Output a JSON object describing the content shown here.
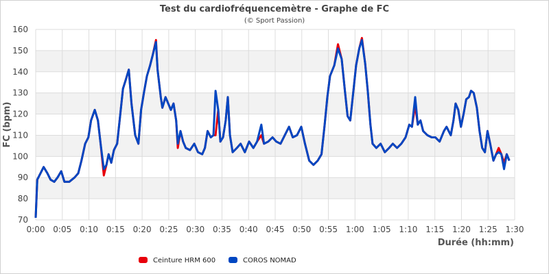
{
  "chart_data": {
    "type": "line",
    "title": "Test du cardiofréquencemètre - Graphe de FC",
    "subtitle": "(© Sport Passion)",
    "xlabel": "Durée (hh:mm)",
    "ylabel": "FC (bpm)",
    "ylim": [
      70,
      160
    ],
    "yticks": [
      "70",
      "80",
      "90",
      "100",
      "110",
      "120",
      "130",
      "140",
      "150",
      "160"
    ],
    "xlim": [
      "0:00",
      "1:30"
    ],
    "xticks": [
      "0:00",
      "0:05",
      "0:10",
      "0:15",
      "0:20",
      "0:25",
      "0:30",
      "0:35",
      "0:40",
      "0:45",
      "0:50",
      "0:55",
      "1:00",
      "1:05",
      "1:10",
      "1:15",
      "1:20",
      "1:25",
      "1:30"
    ],
    "grid": true,
    "legend_position": "bottom-left",
    "x": [
      "0:00:00",
      "0:00:18",
      "0:00:54",
      "0:01:30",
      "0:02:12",
      "0:02:48",
      "0:03:30",
      "0:04:06",
      "0:04:48",
      "0:05:24",
      "0:06:18",
      "0:07:18",
      "0:08:00",
      "0:08:36",
      "0:09:18",
      "0:09:54",
      "0:10:24",
      "0:11:06",
      "0:11:42",
      "0:12:12",
      "0:12:48",
      "0:13:18",
      "0:13:42",
      "0:14:12",
      "0:14:42",
      "0:15:18",
      "0:15:54",
      "0:16:24",
      "0:16:54",
      "0:17:30",
      "0:18:00",
      "0:18:42",
      "0:19:18",
      "0:19:48",
      "0:20:24",
      "0:20:54",
      "0:21:30",
      "0:22:00",
      "0:22:36",
      "0:22:54",
      "0:23:30",
      "0:23:48",
      "0:24:24",
      "0:24:54",
      "0:25:24",
      "0:25:54",
      "0:26:24",
      "0:26:42",
      "0:27:12",
      "0:27:42",
      "0:28:12",
      "0:29:00",
      "0:29:48",
      "0:30:30",
      "0:31:18",
      "0:31:48",
      "0:32:18",
      "0:32:54",
      "0:33:24",
      "0:33:48",
      "0:34:18",
      "0:34:42",
      "0:35:12",
      "0:35:42",
      "0:36:06",
      "0:36:30",
      "0:37:00",
      "0:37:48",
      "0:38:30",
      "0:39:18",
      "0:40:06",
      "0:40:54",
      "0:41:36",
      "0:42:24",
      "0:42:54",
      "0:43:42",
      "0:44:30",
      "0:45:12",
      "0:46:00",
      "0:46:48",
      "0:47:36",
      "0:48:18",
      "0:49:06",
      "0:49:54",
      "0:50:36",
      "0:51:24",
      "0:52:12",
      "0:53:00",
      "0:53:42",
      "0:54:18",
      "0:54:48",
      "0:55:18",
      "0:56:06",
      "0:56:48",
      "0:57:30",
      "0:58:06",
      "0:58:36",
      "0:59:06",
      "0:59:42",
      "1:00:12",
      "1:00:48",
      "1:01:18",
      "1:01:54",
      "1:02:24",
      "1:02:54",
      "1:03:18",
      "1:04:00",
      "1:04:48",
      "1:05:36",
      "1:06:24",
      "1:07:06",
      "1:07:54",
      "1:08:42",
      "1:09:30",
      "1:10:12",
      "1:10:42",
      "1:11:18",
      "1:11:48",
      "1:12:18",
      "1:12:48",
      "1:13:36",
      "1:14:24",
      "1:15:06",
      "1:15:54",
      "1:16:42",
      "1:17:12",
      "1:18:00",
      "1:18:30",
      "1:18:54",
      "1:19:24",
      "1:19:54",
      "1:20:24",
      "1:20:54",
      "1:21:24",
      "1:21:48",
      "1:22:18",
      "1:22:54",
      "1:23:24",
      "1:23:54",
      "1:24:24",
      "1:24:54",
      "1:25:24",
      "1:26:00",
      "1:26:30",
      "1:27:00",
      "1:27:30",
      "1:28:00",
      "1:28:30",
      "1:29:00"
    ],
    "series": [
      {
        "name": "Ceinture HRM 600",
        "color": "#e8000b",
        "values": [
          71,
          89,
          92,
          95,
          92,
          89,
          88,
          90,
          93,
          88,
          88,
          90,
          92,
          98,
          106,
          109,
          117,
          122,
          117,
          106,
          91,
          96,
          101,
          97,
          103,
          106,
          120,
          132,
          136,
          141,
          125,
          110,
          106,
          122,
          131,
          138,
          143,
          148,
          155,
          141,
          128,
          123,
          128,
          125,
          122,
          125,
          117,
          104,
          112,
          107,
          104,
          103,
          106,
          102,
          101,
          104,
          112,
          109,
          110,
          110,
          122,
          107,
          109,
          117,
          128,
          110,
          102,
          104,
          106,
          102,
          107,
          104,
          107,
          110,
          106,
          107,
          109,
          107,
          106,
          110,
          114,
          109,
          110,
          114,
          106,
          98,
          96,
          98,
          101,
          115,
          128,
          138,
          143,
          153,
          146,
          131,
          119,
          117,
          131,
          143,
          151,
          156,
          144,
          131,
          115,
          106,
          104,
          106,
          102,
          104,
          106,
          104,
          106,
          109,
          115,
          114,
          124,
          115,
          117,
          112,
          110,
          109,
          109,
          107,
          112,
          114,
          110,
          117,
          125,
          122,
          114,
          120,
          127,
          128,
          131,
          130,
          123,
          112,
          104,
          102,
          112,
          106,
          98,
          101,
          104,
          101,
          97,
          101,
          98
        ]
      },
      {
        "name": "COROS NOMAD",
        "color": "#0047c2",
        "values": [
          71,
          89,
          92,
          95,
          92,
          89,
          88,
          90,
          93,
          88,
          88,
          90,
          92,
          98,
          106,
          109,
          117,
          122,
          117,
          106,
          94,
          96,
          101,
          97,
          103,
          106,
          120,
          132,
          136,
          141,
          125,
          110,
          106,
          122,
          131,
          138,
          143,
          148,
          154,
          141,
          128,
          123,
          128,
          125,
          122,
          125,
          117,
          106,
          112,
          107,
          104,
          103,
          106,
          102,
          101,
          104,
          112,
          109,
          110,
          131,
          122,
          107,
          109,
          117,
          128,
          110,
          102,
          104,
          106,
          102,
          107,
          104,
          107,
          115,
          106,
          107,
          109,
          107,
          106,
          110,
          114,
          109,
          110,
          114,
          106,
          98,
          96,
          98,
          101,
          115,
          128,
          138,
          143,
          151,
          146,
          131,
          119,
          117,
          131,
          143,
          151,
          155,
          144,
          131,
          115,
          106,
          104,
          106,
          102,
          104,
          106,
          104,
          106,
          109,
          115,
          114,
          128,
          115,
          117,
          112,
          110,
          109,
          109,
          107,
          112,
          114,
          110,
          117,
          125,
          122,
          114,
          120,
          127,
          128,
          131,
          130,
          123,
          112,
          104,
          102,
          112,
          106,
          98,
          101,
          102,
          101,
          94,
          101,
          98
        ]
      }
    ]
  }
}
